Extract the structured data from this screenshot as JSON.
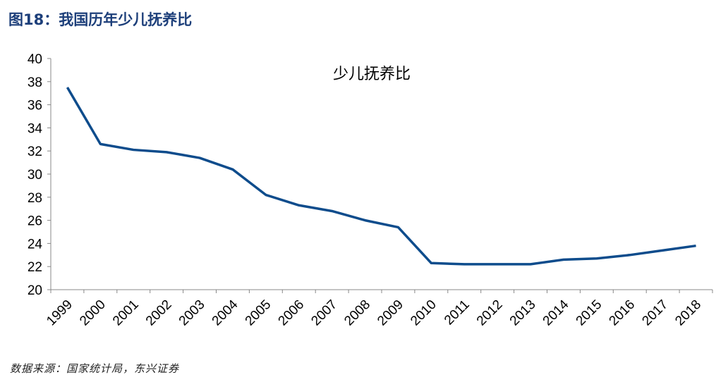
{
  "header": {
    "title": "图18：我国历年少儿抚养比"
  },
  "footer": {
    "source": "数据来源：国家统计局，东兴证券"
  },
  "chart_data": {
    "type": "line",
    "title": "少儿抚养比",
    "xlabel": "",
    "ylabel": "",
    "categories": [
      "1999",
      "2000",
      "2001",
      "2002",
      "2003",
      "2004",
      "2005",
      "2006",
      "2007",
      "2008",
      "2009",
      "2010",
      "2011",
      "2012",
      "2013",
      "2014",
      "2015",
      "2016",
      "2017",
      "2018"
    ],
    "series": [
      {
        "values": [
          37.5,
          32.6,
          32.1,
          31.9,
          31.4,
          30.4,
          28.2,
          27.3,
          26.8,
          26.0,
          25.4,
          22.3,
          22.2,
          22.2,
          22.2,
          22.6,
          22.7,
          23.0,
          23.4,
          23.8
        ],
        "color": "#0e4c8c"
      }
    ],
    "ylim": [
      20,
      40
    ],
    "yticks": [
      20,
      22,
      24,
      26,
      28,
      30,
      32,
      34,
      36,
      38,
      40
    ],
    "grid": false,
    "legend": "none"
  }
}
